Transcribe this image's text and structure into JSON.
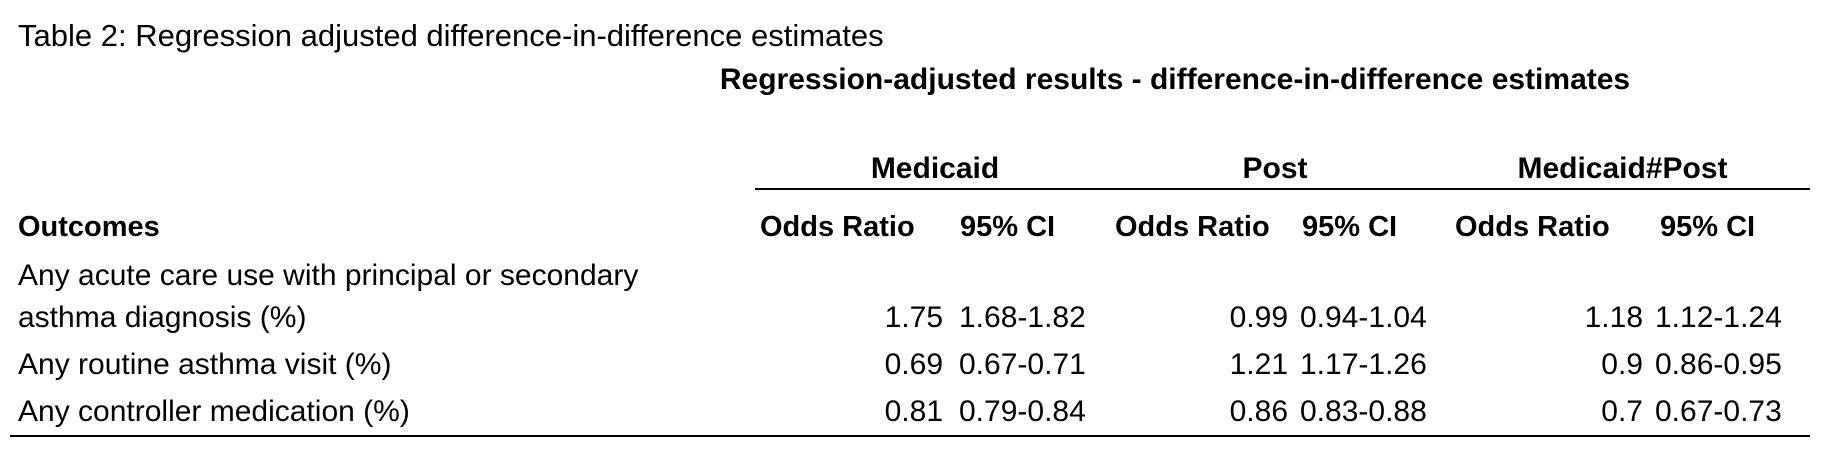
{
  "caption": "Table 2: Regression adjusted difference-in-difference estimates",
  "banner": "Regression-adjusted results - difference-in-difference estimates",
  "groups": [
    "Medicaid",
    "Post",
    "Medicaid#Post"
  ],
  "headers": {
    "outcomes": "Outcomes",
    "odds_ratio": "Odds Ratio",
    "ci": "95% CI"
  },
  "rows": [
    {
      "outcome_line1": "Any acute care use with principal or secondary",
      "outcome_line2": "asthma diagnosis (%)",
      "medicaid_or": "1.75",
      "medicaid_ci": "1.68-1.82",
      "post_or": "0.99",
      "post_ci": "0.94-1.04",
      "interaction_or": "1.18",
      "interaction_ci": "1.12-1.24"
    },
    {
      "outcome": "Any routine asthma visit (%)",
      "medicaid_or": "0.69",
      "medicaid_ci": "0.67-0.71",
      "post_or": "1.21",
      "post_ci": "1.17-1.26",
      "interaction_or": "0.9",
      "interaction_ci": "0.86-0.95"
    },
    {
      "outcome": "Any controller medication (%)",
      "medicaid_or": "0.81",
      "medicaid_ci": "0.79-0.84",
      "post_or": "0.86",
      "post_ci": "0.83-0.88",
      "interaction_or": "0.7",
      "interaction_ci": "0.67-0.73"
    }
  ]
}
